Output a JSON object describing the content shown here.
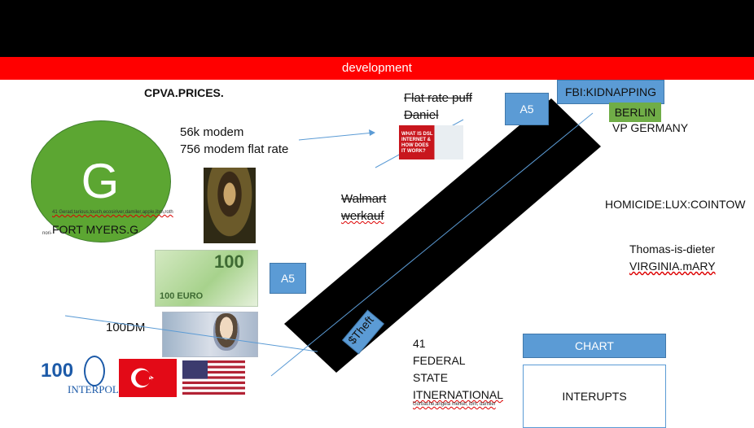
{
  "header": {
    "dev_label": "development"
  },
  "left": {
    "cpva": "CPVA.PRICES.",
    "modem_line1": "56k modem",
    "modem_line2": "756 modem flat rate",
    "g_letter": "G",
    "tiny1": "41 Gerad,tarious,touch,ecosiriver,damiler,apple,ibm,roth",
    "fort_myers": "FORT MYERS.G",
    "tiny2": "nori-",
    "euro_value": "100",
    "euro_small": "100 EURO",
    "dm_label": "100DM",
    "interpol_100": "100",
    "interpol_text": "INTERPOL"
  },
  "center": {
    "a5_mid": "A5",
    "a5_top": "A5",
    "flatrate_line1": "Flat rate puff",
    "flatrate_line2": "Daniel",
    "dsl_text": "WHAT IS DSL INTERNET & HOW DOES IT WORK?",
    "walmart_line1": "Walmart",
    "walmart_line2": "werkauf",
    "theft": "$Theft"
  },
  "right": {
    "fbi": "FBI:KIDNAPPING",
    "berlin": "BERLIN",
    "vp": "VP GERMANY",
    "homicide": "HOMICIDE:LUX:COINTOW",
    "thomas": "Thomas-is-dieter",
    "virginia": "VIRGINIA.mARY",
    "fed_line1": "41",
    "fed_line2": "FEDERAL",
    "fed_line3": "STATE",
    "fed_line4": "ITNERNATIONAL",
    "tiny3": "Gorbache,angela merkel, ibm, damiler",
    "chart_button": "CHART",
    "interupts": "INTERUPTS"
  },
  "colors": {
    "dev_bar": "#ff0000",
    "accent_blue": "#5b9bd5",
    "accent_green": "#70ad47",
    "g_circle": "#5ca632"
  }
}
